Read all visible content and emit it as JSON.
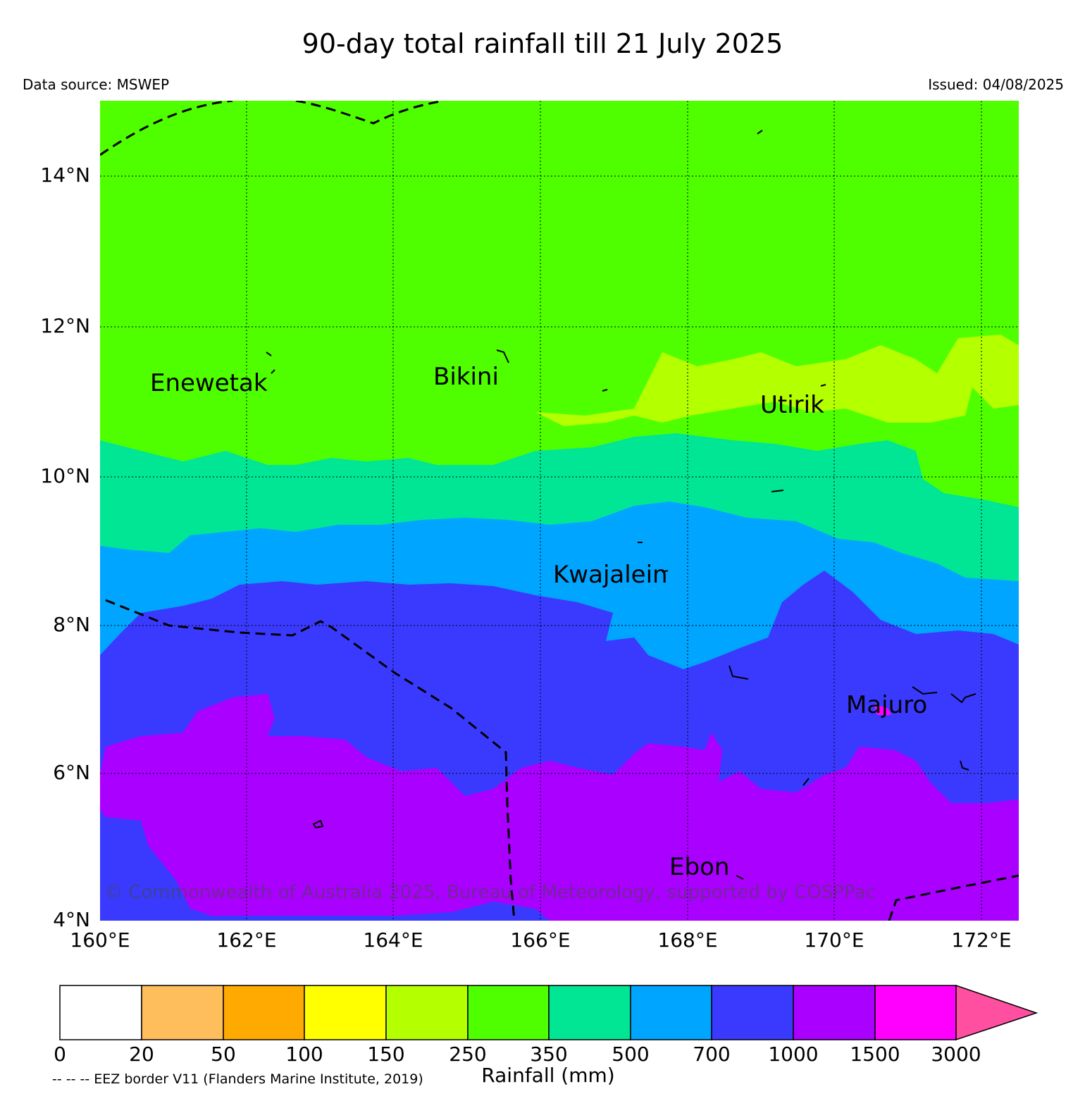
{
  "title": "90-day total rainfall till 21 July 2025",
  "data_source": "Data source: MSWEP",
  "issued": "Issued: 04/08/2025",
  "copyright": "© Commonwealth of Australia 2025, Bureau of Meteorology, supported by COSPPac",
  "eez_note": "-- -- -- EEZ border V11 (Flanders Marine Institute, 2019)",
  "map": {
    "lon_range": [
      160,
      172.5
    ],
    "lat_range": [
      4,
      15
    ],
    "lat_labels": [
      "14°N",
      "12°N",
      "10°N",
      "8°N",
      "6°N",
      "4°N"
    ],
    "lon_labels": [
      "160°E",
      "162°E",
      "164°E",
      "166°E",
      "168°E",
      "170°E",
      "172°E"
    ]
  },
  "places": [
    {
      "name": "Enewetak"
    },
    {
      "name": "Bikini"
    },
    {
      "name": "Utirik"
    },
    {
      "name": "Kwajalein"
    },
    {
      "name": "Majuro"
    },
    {
      "name": "Ebon"
    }
  ],
  "colorbar": {
    "title": "Rainfall (mm)",
    "ticks": [
      "0",
      "20",
      "50",
      "100",
      "150",
      "250",
      "350",
      "500",
      "700",
      "1000",
      "1500",
      "3000"
    ],
    "colors": [
      "#ffffff",
      "#ffbe5c",
      "#ffaa00",
      "#ffff00",
      "#b4ff00",
      "#4fff00",
      "#00e695",
      "#00a5ff",
      "#3a3aff",
      "#aa00ff",
      "#ff00ff",
      "#ff4fa0"
    ]
  }
}
